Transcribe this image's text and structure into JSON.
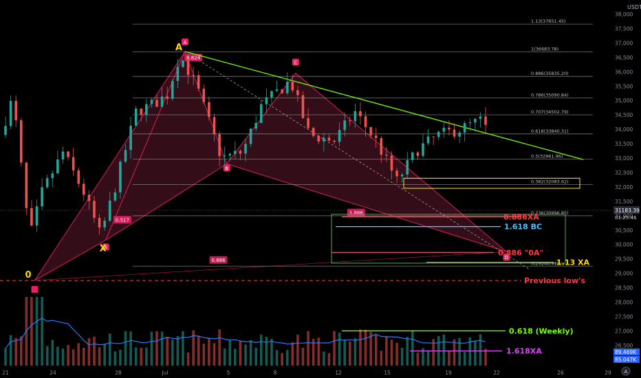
{
  "chart_data": {
    "type": "candlestick",
    "currency": "USDT",
    "y_axis": {
      "min": 26000,
      "max": 38000,
      "ticks": [
        26500,
        27000,
        27500,
        28000,
        28500,
        29000,
        29500,
        30000,
        30500,
        31000,
        31500,
        32000,
        32500,
        33000,
        33500,
        34000,
        34500,
        35000,
        35500,
        36000,
        36500,
        37000,
        37500,
        38000
      ],
      "current_price_label": "31183.39",
      "countdown_label": "01:25:46",
      "volume_label_1": "89.469K",
      "volume_label_2": "85.047K"
    },
    "x_axis": {
      "ticks": [
        "21",
        "24",
        "28",
        "Jul",
        "5",
        "8",
        "12",
        "15",
        "19",
        "22",
        "26",
        "29"
      ],
      "start_day": 21,
      "end_day": 29.6
    },
    "fib_levels": [
      {
        "label": "1.13(37651.45)",
        "value": 37651.45
      },
      {
        "label": "1(36683.78)",
        "value": 36683.78
      },
      {
        "label": "0.886(35835.20)",
        "value": 35835.2
      },
      {
        "label": "0.786(35090.84)",
        "value": 35090.84
      },
      {
        "label": "0.707(34502.79)",
        "value": 34502.79
      },
      {
        "label": "0.618(33840.31)",
        "value": 33840.31
      },
      {
        "label": "0.5(32961.96)",
        "value": 32961.96
      },
      {
        "label": "0.382(32083.62)",
        "value": 32083.62
      },
      {
        "label": "0.236(30996.85)",
        "value": 30996.85
      },
      {
        "label": "0(29246.91)",
        "value": 29246.91
      }
    ],
    "harmonic_points": [
      {
        "name": "0",
        "day": 22.4,
        "price": 28750
      },
      {
        "name": "X",
        "day": 25.8,
        "price": 30150
      },
      {
        "name": "A",
        "day": 29.6,
        "price": 36700
      },
      {
        "name": "B",
        "day": 31.6,
        "price": 32800
      },
      {
        "name": "C",
        "day": 34.9,
        "price": 35950
      },
      {
        "name": "D",
        "day": 45.0,
        "price": 29750
      }
    ],
    "ratio_labels": [
      {
        "text": "0.824",
        "day": 30.0,
        "price": 36480
      },
      {
        "text": "0.517",
        "day": 26.6,
        "price": 30850
      },
      {
        "text": "1.866",
        "day": 37.8,
        "price": 31100
      },
      {
        "text": "0.886",
        "day": 31.2,
        "price": 29450
      }
    ],
    "annotations": [
      {
        "text": "0.886XA",
        "price": 30960,
        "color": "#ff3b3b"
      },
      {
        "text": "1.618 BC",
        "price": 30620,
        "color": "#4fc3f7"
      },
      {
        "text": "0.886 \"0A\"",
        "price": 29720,
        "color": "#ff3b3b"
      },
      {
        "text": "1.13 XA",
        "price": 29380,
        "color": "#ffd600"
      },
      {
        "text": "Previous low's",
        "price": 28750,
        "color": "#ff3b3b"
      },
      {
        "text": "0.618 (Weekly)",
        "price": 27000,
        "color": "#76ff03"
      },
      {
        "text": "1.618XA",
        "price": 26300,
        "color": "#e040fb"
      }
    ],
    "point_letters": {
      "A": "A",
      "B": "B",
      "C": "C",
      "D": "D",
      "X": "X",
      "origin": "0"
    },
    "box_labels": {
      "A": "A",
      "B": "B",
      "C": "C",
      "D": "D",
      "X": "X"
    },
    "colors": {
      "up": "#26a69a",
      "down": "#ef5350",
      "pattern_fill": "#5c1a2e",
      "pattern_line": "#e91e63",
      "fib_line": "#9e9e9e",
      "trendline": "#76ff03",
      "zone_green": "#4caf50",
      "zone_yellow": "#ffeb3b",
      "ma_volume": "#2979ff"
    }
  }
}
